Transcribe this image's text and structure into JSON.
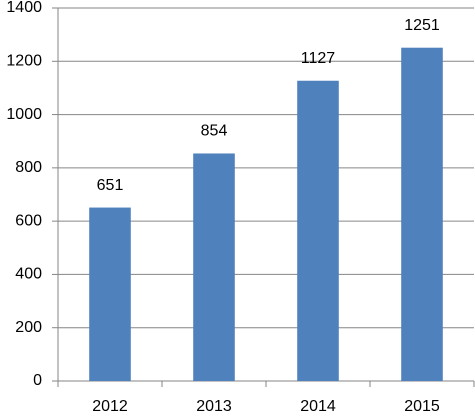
{
  "chart_data": {
    "type": "bar",
    "categories": [
      "2012",
      "2013",
      "2014",
      "2015"
    ],
    "values": [
      651,
      854,
      1127,
      1251
    ],
    "color": "#4f81bd",
    "ylim": [
      0,
      1400
    ],
    "yticks": [
      0,
      200,
      400,
      600,
      800,
      1000,
      1200,
      1400
    ],
    "grid": true
  }
}
